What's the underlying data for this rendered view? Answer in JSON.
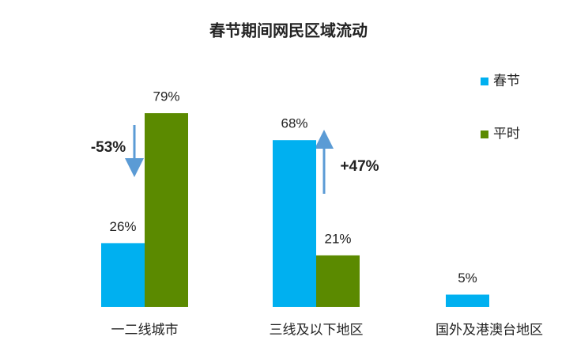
{
  "chart_data": {
    "type": "bar",
    "title": "春节期间网民区域流动",
    "categories": [
      "一二线城市",
      "三线及以下地区",
      "国外及港澳台地区"
    ],
    "series": [
      {
        "name": "春节",
        "color": "#00b0f0",
        "values": [
          26,
          68,
          5
        ],
        "value_labels": [
          "26%",
          "68%",
          "5%"
        ]
      },
      {
        "name": "平时",
        "color": "#5b8a00",
        "values": [
          79,
          21,
          null
        ],
        "value_labels": [
          "79%",
          "21%",
          null
        ]
      }
    ],
    "annotations": [
      "-53%",
      "+47%"
    ],
    "ylim": [
      0,
      90
    ],
    "grid": false
  }
}
